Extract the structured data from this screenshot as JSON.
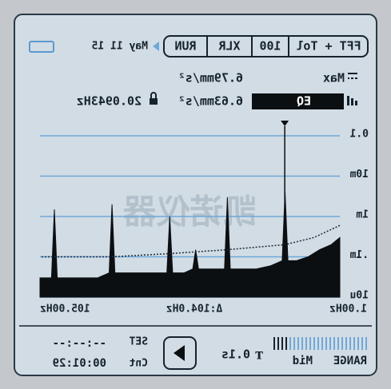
{
  "status_bar": {
    "mode": "FFT + Tol",
    "lines": "100",
    "input": "XLR",
    "state": "RUN",
    "date": "May 11 15"
  },
  "readout": {
    "max_label": "Max",
    "max_value": "6.79mm/s²",
    "eq_label": "EQ",
    "eq_value": "6.63mm/s²"
  },
  "chart_data": {
    "type": "area",
    "watermark": "凯诺仪器",
    "x": [
      1,
      4,
      8,
      12,
      16,
      19,
      20,
      21,
      25,
      30,
      35,
      39,
      40,
      41,
      45,
      50,
      51,
      52,
      55,
      59,
      60,
      61,
      65,
      70,
      75,
      79,
      80,
      81,
      85,
      90,
      95,
      99,
      100,
      101,
      105
    ],
    "series": [
      {
        "color": "#0c0f12",
        "values": [
          0.0003,
          0.0002,
          0.00015,
          0.0001,
          8e-05,
          8e-05,
          0.004,
          8e-05,
          6e-05,
          5e-05,
          5e-05,
          5e-05,
          0.003,
          5e-05,
          5e-05,
          5e-05,
          0.00015,
          5e-05,
          4e-05,
          4e-05,
          0.001,
          4e-05,
          4e-05,
          4e-05,
          4e-05,
          4e-05,
          0.002,
          4e-05,
          3e-05,
          3e-05,
          3e-05,
          3e-05,
          0.0015,
          3e-05,
          3e-05
        ]
      },
      {
        "color": "#1b2a3a",
        "style": "dotted",
        "x": [
          1,
          10,
          20,
          40,
          60,
          80,
          105
        ],
        "values": [
          0.0006,
          0.0003,
          0.0002,
          0.00015,
          0.00012,
          0.0001,
          0.0001
        ]
      }
    ],
    "xlim": [
      1,
      105
    ],
    "xticks": [
      {
        "value": 1,
        "label": "1.00Hz"
      },
      {
        "value": 105,
        "label": "105.00Hz"
      }
    ],
    "ylim": [
      1e-05,
      0.1
    ],
    "log_y": true,
    "grid": true,
    "yticks": [
      0.1,
      {
        "value": 0.01,
        "label": "10m"
      },
      {
        "value": 0.001,
        "label": "1m"
      },
      {
        "value": 0.0001,
        "label": ".1m"
      },
      {
        "value": 1e-05,
        "label": "10u"
      }
    ],
    "cursor": {
      "value": 20.0943,
      "label": "20.0943Hz"
    },
    "annotation": "Δ:104.0Hz"
  },
  "footer": {
    "range_label": "RANGE",
    "range_value": "Mid",
    "time_constant": "0.1s",
    "set_label": "SET",
    "set_time": "--:--:--",
    "count_label": "Cnt",
    "count_time": "00:01:29"
  }
}
